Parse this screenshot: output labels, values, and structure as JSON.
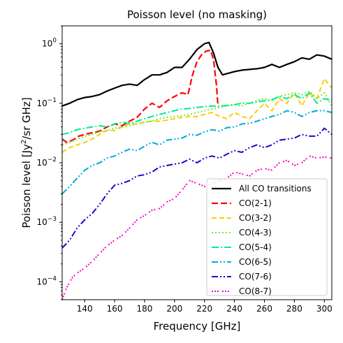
{
  "chart_data": {
    "type": "line",
    "title": "Poisson level (no masking)",
    "xlabel": "Frequency [GHz]",
    "ylabel": {
      "main": "Poisson level [Jy",
      "sup": "2",
      "rest": "/sr GHz]"
    },
    "xlim": [
      125,
      305
    ],
    "ylim": [
      5e-05,
      2.0
    ],
    "yscale": "log",
    "grid": false,
    "legend_position": "lower-right",
    "x_ticks": [
      140,
      160,
      180,
      200,
      220,
      240,
      260,
      280,
      300
    ],
    "y_ticks": [
      {
        "value": 0.0001,
        "base": "10",
        "exp": "−4"
      },
      {
        "value": 0.001,
        "base": "10",
        "exp": "−3"
      },
      {
        "value": 0.01,
        "base": "10",
        "exp": "−2"
      },
      {
        "value": 0.1,
        "base": "10",
        "exp": "−1"
      },
      {
        "value": 1,
        "base": "10",
        "exp": "0"
      }
    ],
    "series": [
      {
        "name": "All CO transitions",
        "color": "#000000",
        "dash": "",
        "width": 2.2,
        "points": [
          [
            125,
            0.09
          ],
          [
            130,
            0.1
          ],
          [
            135,
            0.115
          ],
          [
            140,
            0.125
          ],
          [
            145,
            0.13
          ],
          [
            150,
            0.14
          ],
          [
            155,
            0.16
          ],
          [
            160,
            0.18
          ],
          [
            165,
            0.2
          ],
          [
            170,
            0.21
          ],
          [
            175,
            0.2
          ],
          [
            180,
            0.25
          ],
          [
            185,
            0.3
          ],
          [
            190,
            0.3
          ],
          [
            195,
            0.33
          ],
          [
            200,
            0.4
          ],
          [
            205,
            0.4
          ],
          [
            210,
            0.55
          ],
          [
            215,
            0.8
          ],
          [
            220,
            1.0
          ],
          [
            223,
            1.05
          ],
          [
            226,
            0.7
          ],
          [
            229,
            0.4
          ],
          [
            232,
            0.3
          ],
          [
            236,
            0.32
          ],
          [
            240,
            0.34
          ],
          [
            245,
            0.36
          ],
          [
            250,
            0.37
          ],
          [
            255,
            0.38
          ],
          [
            260,
            0.4
          ],
          [
            265,
            0.45
          ],
          [
            270,
            0.4
          ],
          [
            275,
            0.45
          ],
          [
            280,
            0.5
          ],
          [
            285,
            0.58
          ],
          [
            290,
            0.55
          ],
          [
            295,
            0.65
          ],
          [
            300,
            0.62
          ],
          [
            305,
            0.55
          ]
        ]
      },
      {
        "name": "CO(2-1)",
        "color": "#ff0000",
        "dash": "9,4",
        "width": 2.2,
        "points": [
          [
            125,
            0.025
          ],
          [
            128,
            0.022
          ],
          [
            132,
            0.024
          ],
          [
            136,
            0.028
          ],
          [
            140,
            0.03
          ],
          [
            145,
            0.032
          ],
          [
            150,
            0.034
          ],
          [
            155,
            0.04
          ],
          [
            160,
            0.045
          ],
          [
            165,
            0.042
          ],
          [
            170,
            0.05
          ],
          [
            175,
            0.058
          ],
          [
            180,
            0.08
          ],
          [
            185,
            0.1
          ],
          [
            190,
            0.085
          ],
          [
            195,
            0.11
          ],
          [
            200,
            0.13
          ],
          [
            205,
            0.15
          ],
          [
            209,
            0.14
          ],
          [
            212,
            0.3
          ],
          [
            215,
            0.5
          ],
          [
            218,
            0.65
          ],
          [
            221,
            0.75
          ],
          [
            224,
            0.78
          ],
          [
            226,
            0.55
          ],
          [
            228,
            0.2
          ],
          [
            229,
            0.09
          ]
        ]
      },
      {
        "name": "CO(3-2)",
        "color": "#ffcc00",
        "dash": "7,4",
        "width": 2.0,
        "points": [
          [
            125,
            0.015
          ],
          [
            130,
            0.018
          ],
          [
            135,
            0.02
          ],
          [
            140,
            0.022
          ],
          [
            145,
            0.025
          ],
          [
            150,
            0.03
          ],
          [
            155,
            0.035
          ],
          [
            160,
            0.035
          ],
          [
            165,
            0.04
          ],
          [
            170,
            0.045
          ],
          [
            175,
            0.045
          ],
          [
            180,
            0.048
          ],
          [
            185,
            0.05
          ],
          [
            190,
            0.05
          ],
          [
            195,
            0.052
          ],
          [
            200,
            0.055
          ],
          [
            205,
            0.058
          ],
          [
            210,
            0.06
          ],
          [
            215,
            0.06
          ],
          [
            220,
            0.065
          ],
          [
            225,
            0.07
          ],
          [
            230,
            0.06
          ],
          [
            235,
            0.055
          ],
          [
            240,
            0.07
          ],
          [
            245,
            0.06
          ],
          [
            250,
            0.055
          ],
          [
            255,
            0.075
          ],
          [
            260,
            0.1
          ],
          [
            265,
            0.075
          ],
          [
            270,
            0.12
          ],
          [
            275,
            0.1
          ],
          [
            280,
            0.15
          ],
          [
            285,
            0.09
          ],
          [
            290,
            0.15
          ],
          [
            295,
            0.12
          ],
          [
            300,
            0.26
          ],
          [
            305,
            0.18
          ]
        ]
      },
      {
        "name": "CO(4-3)",
        "color": "#66ee33",
        "dash": "2,3",
        "width": 2.0,
        "points": [
          [
            125,
            0.02
          ],
          [
            130,
            0.022
          ],
          [
            135,
            0.025
          ],
          [
            140,
            0.028
          ],
          [
            145,
            0.03
          ],
          [
            150,
            0.033
          ],
          [
            155,
            0.035
          ],
          [
            160,
            0.038
          ],
          [
            165,
            0.04
          ],
          [
            170,
            0.042
          ],
          [
            175,
            0.045
          ],
          [
            180,
            0.048
          ],
          [
            185,
            0.05
          ],
          [
            190,
            0.055
          ],
          [
            195,
            0.058
          ],
          [
            200,
            0.06
          ],
          [
            205,
            0.062
          ],
          [
            210,
            0.065
          ],
          [
            215,
            0.07
          ],
          [
            220,
            0.075
          ],
          [
            225,
            0.08
          ],
          [
            230,
            0.085
          ],
          [
            235,
            0.09
          ],
          [
            240,
            0.095
          ],
          [
            245,
            0.09
          ],
          [
            250,
            0.1
          ],
          [
            255,
            0.11
          ],
          [
            260,
            0.12
          ],
          [
            265,
            0.11
          ],
          [
            270,
            0.13
          ],
          [
            275,
            0.14
          ],
          [
            280,
            0.15
          ],
          [
            285,
            0.14
          ],
          [
            290,
            0.16
          ],
          [
            295,
            0.12
          ],
          [
            300,
            0.15
          ],
          [
            305,
            0.09
          ]
        ]
      },
      {
        "name": "CO(5-4)",
        "color": "#00ee88",
        "dash": "10,3,2,3",
        "width": 2.0,
        "points": [
          [
            125,
            0.03
          ],
          [
            130,
            0.032
          ],
          [
            135,
            0.036
          ],
          [
            140,
            0.038
          ],
          [
            145,
            0.04
          ],
          [
            150,
            0.042
          ],
          [
            155,
            0.04
          ],
          [
            160,
            0.045
          ],
          [
            165,
            0.048
          ],
          [
            170,
            0.046
          ],
          [
            175,
            0.05
          ],
          [
            180,
            0.055
          ],
          [
            185,
            0.06
          ],
          [
            190,
            0.065
          ],
          [
            195,
            0.07
          ],
          [
            200,
            0.075
          ],
          [
            205,
            0.08
          ],
          [
            210,
            0.082
          ],
          [
            215,
            0.085
          ],
          [
            220,
            0.088
          ],
          [
            225,
            0.09
          ],
          [
            230,
            0.09
          ],
          [
            235,
            0.092
          ],
          [
            240,
            0.095
          ],
          [
            245,
            0.1
          ],
          [
            250,
            0.1
          ],
          [
            255,
            0.105
          ],
          [
            260,
            0.11
          ],
          [
            265,
            0.115
          ],
          [
            270,
            0.13
          ],
          [
            275,
            0.12
          ],
          [
            280,
            0.14
          ],
          [
            285,
            0.12
          ],
          [
            290,
            0.15
          ],
          [
            295,
            0.1
          ],
          [
            300,
            0.12
          ],
          [
            305,
            0.11
          ]
        ]
      },
      {
        "name": "CO(6-5)",
        "color": "#00aadd",
        "dash": "9,3,2,3,2,3",
        "width": 2.0,
        "points": [
          [
            125,
            0.003
          ],
          [
            130,
            0.004
          ],
          [
            135,
            0.0055
          ],
          [
            140,
            0.0075
          ],
          [
            145,
            0.009
          ],
          [
            150,
            0.01
          ],
          [
            155,
            0.012
          ],
          [
            160,
            0.013
          ],
          [
            165,
            0.015
          ],
          [
            170,
            0.017
          ],
          [
            175,
            0.016
          ],
          [
            180,
            0.019
          ],
          [
            185,
            0.022
          ],
          [
            190,
            0.02
          ],
          [
            195,
            0.024
          ],
          [
            200,
            0.025
          ],
          [
            205,
            0.026
          ],
          [
            210,
            0.03
          ],
          [
            215,
            0.029
          ],
          [
            220,
            0.033
          ],
          [
            225,
            0.036
          ],
          [
            230,
            0.034
          ],
          [
            235,
            0.039
          ],
          [
            240,
            0.04
          ],
          [
            245,
            0.045
          ],
          [
            250,
            0.046
          ],
          [
            255,
            0.05
          ],
          [
            260,
            0.055
          ],
          [
            265,
            0.06
          ],
          [
            270,
            0.065
          ],
          [
            275,
            0.075
          ],
          [
            280,
            0.07
          ],
          [
            285,
            0.06
          ],
          [
            290,
            0.07
          ],
          [
            295,
            0.075
          ],
          [
            300,
            0.075
          ],
          [
            305,
            0.07
          ]
        ]
      },
      {
        "name": "CO(7-6)",
        "color": "#2200cc",
        "dash": "9,3,2,3,2,3",
        "width": 2.0,
        "points": [
          [
            125,
            0.00037
          ],
          [
            130,
            0.0005
          ],
          [
            135,
            0.0008
          ],
          [
            140,
            0.0011
          ],
          [
            145,
            0.0014
          ],
          [
            150,
            0.002
          ],
          [
            155,
            0.003
          ],
          [
            160,
            0.0042
          ],
          [
            165,
            0.0045
          ],
          [
            170,
            0.005
          ],
          [
            175,
            0.006
          ],
          [
            180,
            0.0063
          ],
          [
            185,
            0.007
          ],
          [
            190,
            0.0085
          ],
          [
            195,
            0.009
          ],
          [
            200,
            0.0095
          ],
          [
            205,
            0.01
          ],
          [
            210,
            0.0115
          ],
          [
            215,
            0.01
          ],
          [
            220,
            0.012
          ],
          [
            225,
            0.013
          ],
          [
            230,
            0.012
          ],
          [
            235,
            0.014
          ],
          [
            240,
            0.016
          ],
          [
            245,
            0.015
          ],
          [
            250,
            0.018
          ],
          [
            255,
            0.02
          ],
          [
            260,
            0.018
          ],
          [
            265,
            0.02
          ],
          [
            270,
            0.024
          ],
          [
            275,
            0.025
          ],
          [
            280,
            0.026
          ],
          [
            285,
            0.03
          ],
          [
            290,
            0.028
          ],
          [
            295,
            0.028
          ],
          [
            300,
            0.038
          ],
          [
            305,
            0.03
          ]
        ]
      },
      {
        "name": "CO(8-7)",
        "color": "#ff00cc",
        "dash": "2,2,2,2,2,5",
        "width": 2.0,
        "points": [
          [
            125,
            5e-05
          ],
          [
            128,
            8e-05
          ],
          [
            132,
            0.00012
          ],
          [
            135,
            0.00014
          ],
          [
            140,
            0.00017
          ],
          [
            145,
            0.00022
          ],
          [
            150,
            0.0003
          ],
          [
            155,
            0.0004
          ],
          [
            160,
            0.0005
          ],
          [
            165,
            0.0006
          ],
          [
            170,
            0.0008
          ],
          [
            175,
            0.0011
          ],
          [
            180,
            0.0013
          ],
          [
            185,
            0.0016
          ],
          [
            190,
            0.0017
          ],
          [
            195,
            0.0022
          ],
          [
            200,
            0.0025
          ],
          [
            205,
            0.0035
          ],
          [
            210,
            0.005
          ],
          [
            215,
            0.0045
          ],
          [
            220,
            0.004
          ],
          [
            225,
            0.0045
          ],
          [
            230,
            0.005
          ],
          [
            235,
            0.0055
          ],
          [
            240,
            0.007
          ],
          [
            245,
            0.0065
          ],
          [
            250,
            0.006
          ],
          [
            255,
            0.0075
          ],
          [
            260,
            0.008
          ],
          [
            265,
            0.0075
          ],
          [
            270,
            0.01
          ],
          [
            275,
            0.011
          ],
          [
            280,
            0.009
          ],
          [
            285,
            0.01
          ],
          [
            290,
            0.013
          ],
          [
            295,
            0.012
          ],
          [
            300,
            0.0125
          ],
          [
            305,
            0.012
          ]
        ]
      }
    ]
  }
}
